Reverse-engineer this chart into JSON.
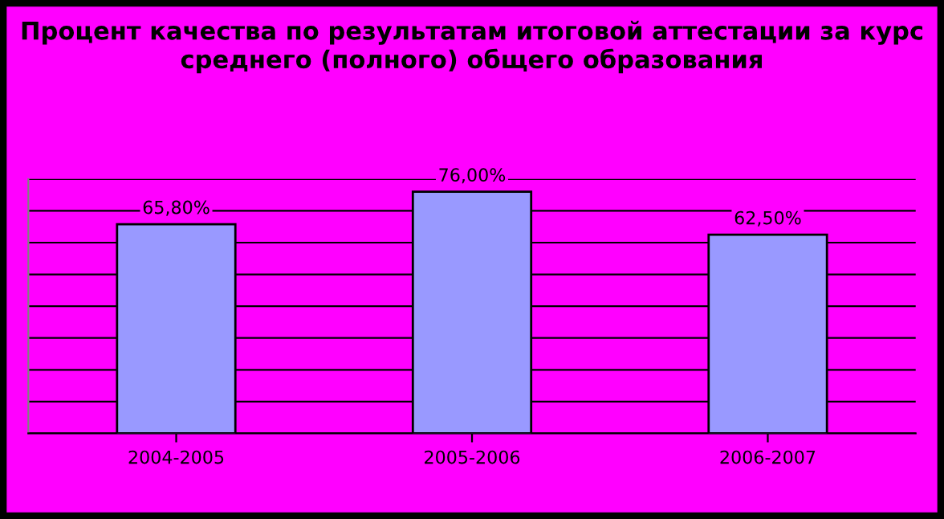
{
  "chart_data": {
    "type": "bar",
    "title": "Процент качества по результатам итоговой аттестации за курс среднего (полного) общего образования",
    "categories": [
      "2004-2005",
      "2005-2006",
      "2006-2007"
    ],
    "values": [
      65.8,
      76.0,
      62.5
    ],
    "value_labels": [
      "65,80%",
      "76,00%",
      "62,50%"
    ],
    "color": "#9999ff",
    "ylim": [
      0,
      80
    ],
    "yticks": [
      {
        "value": 0,
        "label": null
      },
      {
        "value": 10,
        "label": null
      },
      {
        "value": 20,
        "label": null
      },
      {
        "value": 30,
        "label": null
      },
      {
        "value": 40,
        "label": null
      },
      {
        "value": 50,
        "label": null
      },
      {
        "value": 60,
        "label": null
      },
      {
        "value": 70,
        "label": null
      },
      {
        "value": 80,
        "label": null
      }
    ],
    "tick_labels": "x",
    "grid": "y"
  }
}
